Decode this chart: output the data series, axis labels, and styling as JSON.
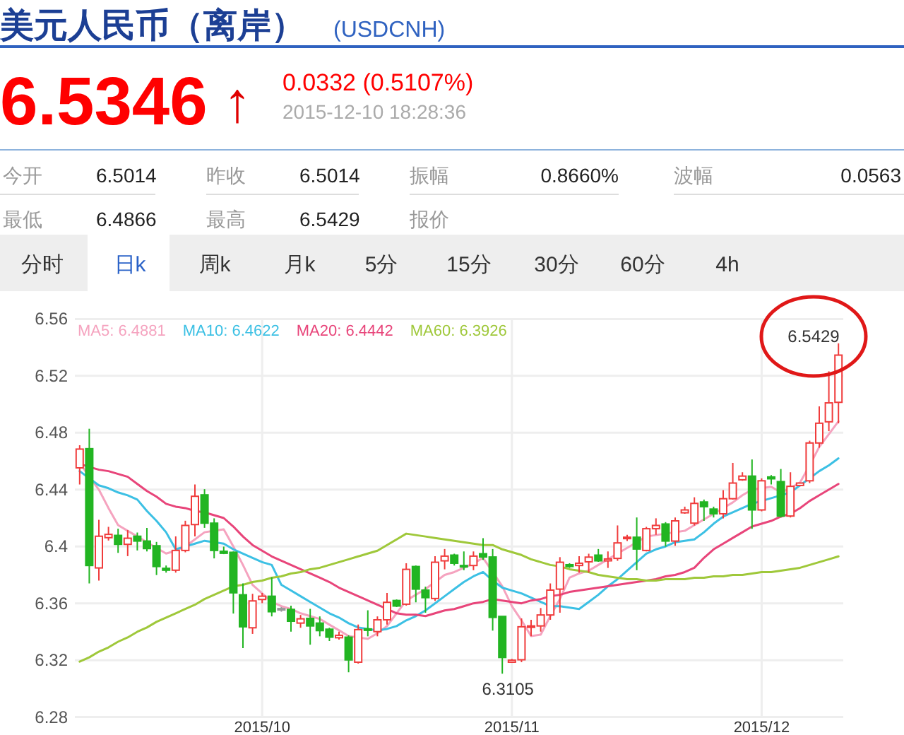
{
  "chart_data": {
    "type": "candlestick",
    "title": "美元人民币（离岸）",
    "subtitle": "(USDCNH)",
    "categories": [
      null,
      null,
      null,
      null,
      null,
      null,
      null,
      null,
      null,
      null,
      null,
      null,
      null,
      null,
      null,
      null,
      null,
      null,
      null,
      "2015/10",
      null,
      null,
      null,
      null,
      null,
      null,
      null,
      null,
      null,
      null,
      null,
      null,
      null,
      null,
      null,
      null,
      null,
      null,
      null,
      null,
      null,
      null,
      null,
      null,
      null,
      "2015/11",
      null,
      null,
      null,
      null,
      null,
      null,
      null,
      null,
      null,
      null,
      null,
      null,
      null,
      null,
      null,
      null,
      null,
      null,
      null,
      null,
      null,
      null,
      null,
      null,
      null,
      "2015/12",
      null,
      null,
      null,
      null,
      null,
      null,
      null,
      null
    ],
    "ohlc": [
      [
        6.4553,
        6.4712,
        6.4436,
        6.4685
      ],
      [
        6.4688,
        6.4828,
        6.374,
        6.3866
      ],
      [
        6.3849,
        6.4188,
        6.376,
        6.4072
      ],
      [
        6.4062,
        6.4138,
        6.4042,
        6.4085
      ],
      [
        6.4078,
        6.4125,
        6.3955,
        6.4015
      ],
      [
        6.4015,
        6.4115,
        6.3932,
        6.4058
      ],
      [
        6.4072,
        6.4098,
        6.3972,
        6.4038
      ],
      [
        6.4038,
        6.4131,
        6.3965,
        6.3985
      ],
      [
        6.4005,
        6.4032,
        6.3799,
        6.3859
      ],
      [
        6.3846,
        6.3866,
        6.3816,
        6.3833
      ],
      [
        6.3833,
        6.4071,
        6.3816,
        6.3972
      ],
      [
        6.3972,
        6.4181,
        6.3959,
        6.4148
      ],
      [
        6.4154,
        6.4436,
        6.4071,
        6.4353
      ],
      [
        6.4363,
        6.4403,
        6.4131,
        6.4164
      ],
      [
        6.4164,
        6.4198,
        6.3916,
        6.3972
      ],
      [
        6.3966,
        6.3999,
        6.3946,
        6.3952
      ],
      [
        6.3959,
        6.3965,
        6.3528,
        6.3674
      ],
      [
        6.366,
        6.374,
        6.3285,
        6.3435
      ],
      [
        6.3428,
        6.3667,
        6.3385,
        6.3617
      ],
      [
        6.3627,
        6.3673,
        6.3601,
        6.365
      ],
      [
        6.365,
        6.3783,
        6.3508,
        6.3541
      ],
      [
        6.3563,
        6.3574,
        6.3541,
        6.356
      ],
      [
        6.3557,
        6.3584,
        6.3401,
        6.3474
      ],
      [
        6.3461,
        6.3518,
        6.3428,
        6.3491
      ],
      [
        6.3494,
        6.3561,
        6.3309,
        6.3441
      ],
      [
        6.3461,
        6.3508,
        6.3368,
        6.3408
      ],
      [
        6.3418,
        6.3428,
        6.3335,
        6.3362
      ],
      [
        6.3358,
        6.3401,
        6.3345,
        6.3375
      ],
      [
        6.3362,
        6.3375,
        6.3115,
        6.3202
      ],
      [
        6.3186,
        6.3451,
        6.3176,
        6.3415
      ],
      [
        6.342,
        6.3551,
        6.3368,
        6.3415
      ],
      [
        6.3401,
        6.3508,
        6.3368,
        6.3484
      ],
      [
        6.3484,
        6.3673,
        6.3451,
        6.3607
      ],
      [
        6.362,
        6.3627,
        6.3574,
        6.3581
      ],
      [
        6.3594,
        6.3882,
        6.3584,
        6.3839
      ],
      [
        6.3859,
        6.3866,
        6.3607,
        6.37
      ],
      [
        6.3693,
        6.3717,
        6.3534,
        6.364
      ],
      [
        6.3634,
        6.3932,
        6.3617,
        6.3889
      ],
      [
        6.3899,
        6.3982,
        6.3839,
        6.3932
      ],
      [
        6.3939,
        6.3949,
        6.3866,
        6.3882
      ],
      [
        6.3866,
        6.3965,
        6.3833,
        6.3859
      ],
      [
        6.3866,
        6.3965,
        6.3833,
        6.3932
      ],
      [
        6.3949,
        6.4058,
        6.3906,
        6.3926
      ],
      [
        6.3926,
        6.3982,
        6.3408,
        6.3501
      ],
      [
        6.3508,
        6.3508,
        6.3105,
        6.3219
      ],
      [
        6.3186,
        6.3209,
        6.3183,
        6.32
      ],
      [
        6.3203,
        6.3494,
        6.3186,
        6.3435
      ],
      [
        6.3435,
        6.3484,
        6.3368,
        6.3441
      ],
      [
        6.3441,
        6.3567,
        6.3401,
        6.3518
      ],
      [
        6.3518,
        6.374,
        6.3484,
        6.3693
      ],
      [
        6.37,
        6.3925,
        6.3534,
        6.3889
      ],
      [
        6.3872,
        6.3882,
        6.3849,
        6.3859
      ],
      [
        6.3866,
        6.3932,
        6.3816,
        6.3882
      ],
      [
        6.3892,
        6.3949,
        6.3816,
        6.3925
      ],
      [
        6.3939,
        6.3982,
        6.3892,
        6.3899
      ],
      [
        6.3899,
        6.3965,
        6.3849,
        6.3912
      ],
      [
        6.3916,
        6.4148,
        6.3899,
        6.4025
      ],
      [
        6.4062,
        6.4082,
        6.4038,
        6.4065
      ],
      [
        6.4065,
        6.4204,
        6.3833,
        6.3982
      ],
      [
        6.3972,
        6.4138,
        6.3965,
        6.4125
      ],
      [
        6.4125,
        6.4198,
        6.4082,
        6.4148
      ],
      [
        6.4158,
        6.4171,
        6.3999,
        6.4038
      ],
      [
        6.4038,
        6.4204,
        6.4005,
        6.418
      ],
      [
        6.4237,
        6.428,
        6.423,
        6.4257
      ],
      [
        6.4164,
        6.4346,
        6.4147,
        6.4303
      ],
      [
        6.4313,
        6.433,
        6.418,
        6.428
      ],
      [
        6.4263,
        6.428,
        6.4204,
        6.423
      ],
      [
        6.423,
        6.4396,
        6.4197,
        6.4336
      ],
      [
        6.4336,
        6.4588,
        6.433,
        6.4446
      ],
      [
        6.4469,
        6.4522,
        6.4462,
        6.4495
      ],
      [
        6.4495,
        6.4612,
        6.4124,
        6.4257
      ],
      [
        6.4257,
        6.4479,
        6.4247,
        6.4462
      ],
      [
        6.4489,
        6.4502,
        6.4436,
        6.4476
      ],
      [
        6.4456,
        6.4545,
        6.4204,
        6.4214
      ],
      [
        6.4214,
        6.4522,
        6.4204,
        6.4423
      ],
      [
        6.4429,
        6.4446,
        6.4423,
        6.4446
      ],
      [
        6.4462,
        6.4744,
        6.4446,
        6.4728
      ],
      [
        6.4728,
        6.4986,
        6.4695,
        6.4867
      ],
      [
        6.4877,
        6.5232,
        6.4811,
        6.501
      ],
      [
        6.5014,
        6.5429,
        6.4866,
        6.5346
      ]
    ],
    "colors": [
      "#f03c3c",
      "#22b522",
      "#f03c3c",
      "#f03c3c",
      "#22b522",
      "#f03c3c",
      "#22b522",
      "#22b522",
      "#22b522",
      "#22b522",
      "#f03c3c",
      "#f03c3c",
      "#f03c3c",
      "#22b522",
      "#22b522",
      "#22b522",
      "#22b522",
      "#22b522",
      "#f03c3c",
      "#f03c3c",
      "#22b522",
      "#999999",
      "#22b522",
      "#f03c3c",
      "#22b522",
      "#22b522",
      "#22b522",
      "#f03c3c",
      "#22b522",
      "#f03c3c",
      "#22b522",
      "#f03c3c",
      "#f03c3c",
      "#22b522",
      "#f03c3c",
      "#22b522",
      "#22b522",
      "#f03c3c",
      "#f03c3c",
      "#22b522",
      "#22b522",
      "#f03c3c",
      "#22b522",
      "#22b522",
      "#22b522",
      "#f03c3c",
      "#f03c3c",
      "#f03c3c",
      "#f03c3c",
      "#f03c3c",
      "#f03c3c",
      "#22b522",
      "#f03c3c",
      "#f03c3c",
      "#22b522",
      "#f03c3c",
      "#f03c3c",
      "#f03c3c",
      "#22b522",
      "#f03c3c",
      "#f03c3c",
      "#22b522",
      "#f03c3c",
      "#f03c3c",
      "#f03c3c",
      "#22b522",
      "#22b522",
      "#f03c3c",
      "#f03c3c",
      "#f03c3c",
      "#22b522",
      "#f03c3c",
      "#22b522",
      "#22b522",
      "#f03c3c",
      "#f03c3c",
      "#f03c3c",
      "#f03c3c",
      "#f03c3c",
      "#f03c3c"
    ],
    "series": [
      {
        "name": "MA5: 6.4881",
        "type": "line",
        "color": "#f5a3bf",
        "values": [
          6.459,
          6.449,
          6.44,
          6.427,
          6.415,
          6.411,
          6.407,
          6.403,
          6.399,
          6.395,
          6.397,
          6.4,
          6.405,
          6.41,
          6.411,
          6.412,
          6.4,
          6.387,
          6.373,
          6.367,
          6.361,
          6.358,
          6.356,
          6.353,
          6.351,
          6.349,
          6.345,
          6.341,
          6.337,
          6.336,
          6.335,
          6.339,
          6.344,
          6.353,
          6.362,
          6.366,
          6.37,
          6.375,
          6.38,
          6.382,
          6.385,
          6.388,
          6.392,
          6.382,
          6.372,
          6.358,
          6.348,
          6.337,
          6.338,
          6.351,
          6.363,
          6.378,
          6.381,
          6.383,
          6.387,
          6.391,
          6.395,
          6.399,
          6.403,
          6.407,
          6.408,
          6.409,
          6.41,
          6.411,
          6.415,
          6.419,
          6.423,
          6.427,
          6.431,
          6.436,
          6.44,
          6.441,
          6.442,
          6.438,
          6.441,
          6.445,
          6.457,
          6.47,
          6.479,
          6.488
        ]
      },
      {
        "name": "MA10: 6.4622",
        "type": "line",
        "color": "#3cc0e4",
        "values": [
          6.453,
          6.448,
          6.443,
          6.441,
          6.438,
          6.436,
          6.433,
          6.425,
          6.418,
          6.41,
          6.398,
          6.4,
          6.402,
          6.404,
          6.403,
          6.402,
          6.398,
          6.395,
          6.392,
          6.389,
          6.387,
          6.373,
          6.369,
          6.365,
          6.361,
          6.357,
          6.353,
          6.35,
          6.346,
          6.343,
          6.342,
          6.341,
          6.342,
          6.344,
          6.348,
          6.351,
          6.355,
          6.36,
          6.365,
          6.37,
          6.375,
          6.379,
          6.382,
          6.376,
          6.371,
          6.369,
          6.367,
          6.364,
          6.361,
          6.358,
          6.358,
          6.357,
          6.356,
          6.361,
          6.366,
          6.372,
          6.377,
          6.383,
          6.389,
          6.395,
          6.398,
          6.4,
          6.403,
          6.404,
          6.405,
          6.41,
          6.416,
          6.421,
          6.424,
          6.427,
          6.43,
          6.432,
          6.434,
          6.436,
          6.438,
          6.443,
          6.448,
          6.453,
          6.457,
          6.462
        ]
      },
      {
        "name": "MA20: 6.4442",
        "type": "line",
        "color": "#e8457a",
        "values": [
          6.458,
          6.456,
          6.454,
          6.453,
          6.451,
          6.449,
          6.444,
          6.439,
          6.435,
          6.43,
          6.428,
          6.427,
          6.425,
          6.424,
          6.422,
          6.42,
          6.414,
          6.407,
          6.401,
          6.397,
          6.393,
          6.39,
          6.387,
          6.384,
          6.381,
          6.378,
          6.375,
          6.371,
          6.368,
          6.365,
          6.362,
          6.359,
          6.356,
          6.353,
          6.352,
          6.352,
          6.351,
          6.353,
          6.355,
          6.356,
          6.358,
          6.36,
          6.361,
          6.363,
          6.362,
          6.361,
          6.36,
          6.362,
          6.363,
          6.365,
          6.366,
          6.368,
          6.369,
          6.37,
          6.371,
          6.372,
          6.373,
          6.374,
          6.375,
          6.376,
          6.377,
          6.379,
          6.38,
          6.382,
          6.385,
          6.392,
          6.398,
          6.402,
          6.406,
          6.41,
          6.414,
          6.416,
          6.418,
          6.421,
          6.423,
          6.427,
          6.432,
          6.436,
          6.44,
          6.444
        ]
      },
      {
        "name": "MA60: 6.3926",
        "type": "line",
        "color": "#9fc83a",
        "values": [
          6.319,
          6.322,
          6.326,
          6.329,
          6.333,
          6.336,
          6.34,
          6.343,
          6.347,
          6.35,
          6.353,
          6.356,
          6.359,
          6.363,
          6.366,
          6.369,
          6.372,
          6.373,
          6.375,
          6.376,
          6.378,
          6.379,
          6.381,
          6.382,
          6.384,
          6.385,
          6.387,
          6.389,
          6.391,
          6.393,
          6.395,
          6.397,
          6.401,
          6.405,
          6.409,
          6.408,
          6.407,
          6.406,
          6.405,
          6.404,
          6.403,
          6.402,
          6.401,
          6.401,
          6.398,
          6.396,
          6.394,
          6.391,
          6.389,
          6.387,
          6.386,
          6.384,
          6.383,
          6.382,
          6.38,
          6.379,
          6.378,
          6.377,
          6.377,
          6.376,
          6.376,
          6.377,
          6.377,
          6.377,
          6.378,
          6.378,
          6.379,
          6.379,
          6.38,
          6.38,
          6.381,
          6.382,
          6.382,
          6.383,
          6.384,
          6.385,
          6.387,
          6.389,
          6.391,
          6.393
        ]
      }
    ],
    "ylim": [
      6.28,
      6.56
    ],
    "yticks": [
      6.28,
      6.32,
      6.36,
      6.4,
      6.44,
      6.48,
      6.52,
      6.56
    ],
    "grid": true,
    "legend": "top left",
    "annotations": [
      "6.5346",
      "↑",
      "0.0332 (0.5107%)",
      "2015-12-10 18:28:36",
      "今开",
      "6.5014",
      "昨收",
      "6.5014",
      "振幅",
      "0.8660%",
      "波幅",
      "0.0563",
      "最低",
      "6.4866",
      "最高",
      "6.5429",
      "报价",
      "分时",
      "日k",
      "周k",
      "月k",
      "5分",
      "15分",
      "30分",
      "60分",
      "4h",
      "6.5429",
      {
        "text": "6.3105",
        "y": 6.3105
      }
    ]
  }
}
